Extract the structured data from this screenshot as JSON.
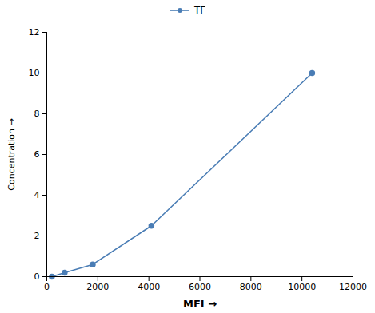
{
  "chart_data": {
    "type": "line",
    "xlabel": "MFI",
    "ylabel": "Concentration",
    "x": [
      200,
      700,
      1800,
      4100,
      10400
    ],
    "series": [
      {
        "name": "TF",
        "color": "#4a7db5",
        "marker": "circle",
        "values": [
          0.0,
          0.2,
          0.6,
          2.5,
          10.0
        ]
      }
    ],
    "xlim": [
      0,
      12000
    ],
    "ylim": [
      0,
      12
    ],
    "xticks": [
      0,
      2000,
      4000,
      6000,
      8000,
      10000,
      12000
    ],
    "yticks": [
      0,
      2,
      4,
      6,
      8,
      10,
      12
    ],
    "grid": false,
    "legend": "top"
  }
}
